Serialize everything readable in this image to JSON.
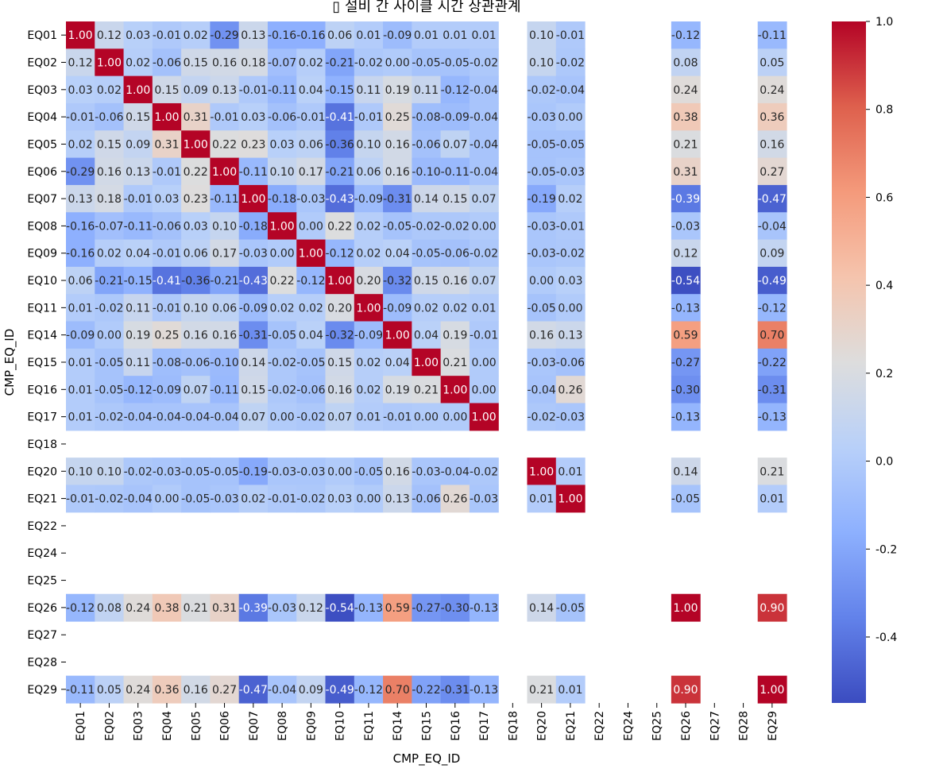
{
  "chart_data": {
    "type": "heatmap",
    "title": "▯ 설비 간 사이클 시간 상관관계",
    "xlabel": "CMP_EQ_ID",
    "ylabel": "CMP_EQ_ID",
    "labels": [
      "EQ01",
      "EQ02",
      "EQ03",
      "EQ04",
      "EQ05",
      "EQ06",
      "EQ07",
      "EQ08",
      "EQ09",
      "EQ10",
      "EQ11",
      "EQ14",
      "EQ15",
      "EQ16",
      "EQ17",
      "EQ18",
      "EQ20",
      "EQ21",
      "EQ22",
      "EQ24",
      "EQ25",
      "EQ26",
      "EQ27",
      "EQ28",
      "EQ29"
    ],
    "colormap": "coolwarm",
    "vmin": -0.55,
    "vmax": 1.0,
    "colorbar_ticks": [
      1.0,
      0.8,
      0.6,
      0.4,
      0.2,
      0.0,
      -0.2,
      -0.4
    ],
    "colorbar_tick_labels": [
      "1.0",
      "0.8",
      "0.6",
      "0.4",
      "0.2",
      "0.0",
      "-0.2",
      "-0.4"
    ],
    "values": [
      [
        1.0,
        0.12,
        0.03,
        -0.01,
        0.02,
        -0.29,
        0.13,
        -0.16,
        -0.16,
        0.06,
        0.01,
        -0.09,
        0.01,
        0.01,
        0.01,
        null,
        0.1,
        -0.01,
        null,
        null,
        null,
        -0.12,
        null,
        null,
        -0.11
      ],
      [
        0.12,
        1.0,
        0.02,
        -0.06,
        0.15,
        0.16,
        0.18,
        -0.07,
        0.02,
        -0.21,
        -0.02,
        0.0,
        -0.05,
        -0.05,
        -0.02,
        null,
        0.1,
        -0.02,
        null,
        null,
        null,
        0.08,
        null,
        null,
        0.05
      ],
      [
        0.03,
        0.02,
        1.0,
        0.15,
        0.09,
        0.13,
        -0.01,
        -0.11,
        0.04,
        -0.15,
        0.11,
        0.19,
        0.11,
        -0.12,
        -0.04,
        null,
        -0.02,
        -0.04,
        null,
        null,
        null,
        0.24,
        null,
        null,
        0.24
      ],
      [
        -0.01,
        -0.06,
        0.15,
        1.0,
        0.31,
        -0.01,
        0.03,
        -0.06,
        -0.01,
        -0.41,
        -0.01,
        0.25,
        -0.08,
        -0.09,
        -0.04,
        null,
        -0.03,
        -0.0,
        null,
        null,
        null,
        0.38,
        null,
        null,
        0.36
      ],
      [
        0.02,
        0.15,
        0.09,
        0.31,
        1.0,
        0.22,
        0.23,
        0.03,
        0.06,
        -0.36,
        0.1,
        0.16,
        -0.06,
        0.07,
        -0.04,
        null,
        -0.05,
        -0.05,
        null,
        null,
        null,
        0.21,
        null,
        null,
        0.16
      ],
      [
        -0.29,
        0.16,
        0.13,
        -0.01,
        0.22,
        1.0,
        -0.11,
        0.1,
        0.17,
        -0.21,
        0.06,
        0.16,
        -0.1,
        -0.11,
        -0.04,
        null,
        -0.05,
        -0.03,
        null,
        null,
        null,
        0.31,
        null,
        null,
        0.27
      ],
      [
        0.13,
        0.18,
        -0.01,
        0.03,
        0.23,
        -0.11,
        1.0,
        -0.18,
        -0.03,
        -0.43,
        -0.09,
        -0.31,
        0.14,
        0.15,
        0.07,
        null,
        -0.19,
        0.02,
        null,
        null,
        null,
        -0.39,
        null,
        null,
        -0.47
      ],
      [
        -0.16,
        -0.07,
        -0.11,
        -0.06,
        0.03,
        0.1,
        -0.18,
        1.0,
        0.0,
        0.22,
        0.02,
        -0.05,
        -0.02,
        -0.02,
        -0.0,
        null,
        -0.03,
        -0.01,
        null,
        null,
        null,
        -0.03,
        null,
        null,
        -0.04
      ],
      [
        -0.16,
        0.02,
        0.04,
        -0.01,
        0.06,
        0.17,
        -0.03,
        0.0,
        1.0,
        -0.12,
        0.02,
        0.04,
        -0.05,
        -0.06,
        -0.02,
        null,
        -0.03,
        -0.02,
        null,
        null,
        null,
        0.12,
        null,
        null,
        0.09
      ],
      [
        0.06,
        -0.21,
        -0.15,
        -0.41,
        -0.36,
        -0.21,
        -0.43,
        0.22,
        -0.12,
        1.0,
        0.2,
        -0.32,
        0.15,
        0.16,
        0.07,
        null,
        -0.0,
        0.03,
        null,
        null,
        null,
        -0.54,
        null,
        null,
        -0.49
      ],
      [
        0.01,
        -0.02,
        0.11,
        -0.01,
        0.1,
        0.06,
        -0.09,
        0.02,
        0.02,
        0.2,
        1.0,
        -0.09,
        0.02,
        0.02,
        0.01,
        null,
        -0.05,
        -0.0,
        null,
        null,
        null,
        -0.13,
        null,
        null,
        -0.12
      ],
      [
        -0.09,
        0.0,
        0.19,
        0.25,
        0.16,
        0.16,
        -0.31,
        -0.05,
        0.04,
        -0.32,
        -0.09,
        1.0,
        0.04,
        0.19,
        -0.01,
        null,
        0.16,
        0.13,
        null,
        null,
        null,
        0.59,
        null,
        null,
        0.7
      ],
      [
        0.01,
        -0.05,
        0.11,
        -0.08,
        -0.06,
        -0.1,
        0.14,
        -0.02,
        -0.05,
        0.15,
        0.02,
        0.04,
        1.0,
        0.21,
        0.0,
        null,
        -0.03,
        -0.06,
        null,
        null,
        null,
        -0.27,
        null,
        null,
        -0.22
      ],
      [
        0.01,
        -0.05,
        -0.12,
        -0.09,
        0.07,
        -0.11,
        0.15,
        -0.02,
        -0.06,
        0.16,
        0.02,
        0.19,
        0.21,
        1.0,
        0.0,
        null,
        -0.04,
        0.26,
        null,
        null,
        null,
        -0.3,
        null,
        null,
        -0.31
      ],
      [
        0.01,
        -0.02,
        -0.04,
        -0.04,
        -0.04,
        -0.04,
        0.07,
        -0.0,
        -0.02,
        0.07,
        0.01,
        -0.01,
        0.0,
        0.0,
        1.0,
        null,
        -0.02,
        -0.03,
        null,
        null,
        null,
        -0.13,
        null,
        null,
        -0.13
      ],
      [
        null,
        null,
        null,
        null,
        null,
        null,
        null,
        null,
        null,
        null,
        null,
        null,
        null,
        null,
        null,
        null,
        null,
        null,
        null,
        null,
        null,
        null,
        null,
        null,
        null
      ],
      [
        0.1,
        0.1,
        -0.02,
        -0.03,
        -0.05,
        -0.05,
        -0.19,
        -0.03,
        -0.03,
        -0.0,
        -0.05,
        0.16,
        -0.03,
        -0.04,
        -0.02,
        null,
        1.0,
        0.01,
        null,
        null,
        null,
        0.14,
        null,
        null,
        0.21
      ],
      [
        -0.01,
        -0.02,
        -0.04,
        -0.0,
        -0.05,
        -0.03,
        0.02,
        -0.01,
        -0.02,
        0.03,
        -0.0,
        0.13,
        -0.06,
        0.26,
        -0.03,
        null,
        0.01,
        1.0,
        null,
        null,
        null,
        -0.05,
        null,
        null,
        0.01
      ],
      [
        null,
        null,
        null,
        null,
        null,
        null,
        null,
        null,
        null,
        null,
        null,
        null,
        null,
        null,
        null,
        null,
        null,
        null,
        null,
        null,
        null,
        null,
        null,
        null,
        null
      ],
      [
        null,
        null,
        null,
        null,
        null,
        null,
        null,
        null,
        null,
        null,
        null,
        null,
        null,
        null,
        null,
        null,
        null,
        null,
        null,
        null,
        null,
        null,
        null,
        null,
        null
      ],
      [
        null,
        null,
        null,
        null,
        null,
        null,
        null,
        null,
        null,
        null,
        null,
        null,
        null,
        null,
        null,
        null,
        null,
        null,
        null,
        null,
        null,
        null,
        null,
        null,
        null
      ],
      [
        -0.12,
        0.08,
        0.24,
        0.38,
        0.21,
        0.31,
        -0.39,
        -0.03,
        0.12,
        -0.54,
        -0.13,
        0.59,
        -0.27,
        -0.3,
        -0.13,
        null,
        0.14,
        -0.05,
        null,
        null,
        null,
        1.0,
        null,
        null,
        0.9
      ],
      [
        null,
        null,
        null,
        null,
        null,
        null,
        null,
        null,
        null,
        null,
        null,
        null,
        null,
        null,
        null,
        null,
        null,
        null,
        null,
        null,
        null,
        null,
        null,
        null,
        null
      ],
      [
        null,
        null,
        null,
        null,
        null,
        null,
        null,
        null,
        null,
        null,
        null,
        null,
        null,
        null,
        null,
        null,
        null,
        null,
        null,
        null,
        null,
        null,
        null,
        null,
        null
      ],
      [
        -0.11,
        0.05,
        0.24,
        0.36,
        0.16,
        0.27,
        -0.47,
        -0.04,
        0.09,
        -0.49,
        -0.12,
        0.7,
        -0.22,
        -0.31,
        -0.13,
        null,
        0.21,
        0.01,
        null,
        null,
        null,
        0.9,
        null,
        null,
        1.0
      ]
    ]
  }
}
